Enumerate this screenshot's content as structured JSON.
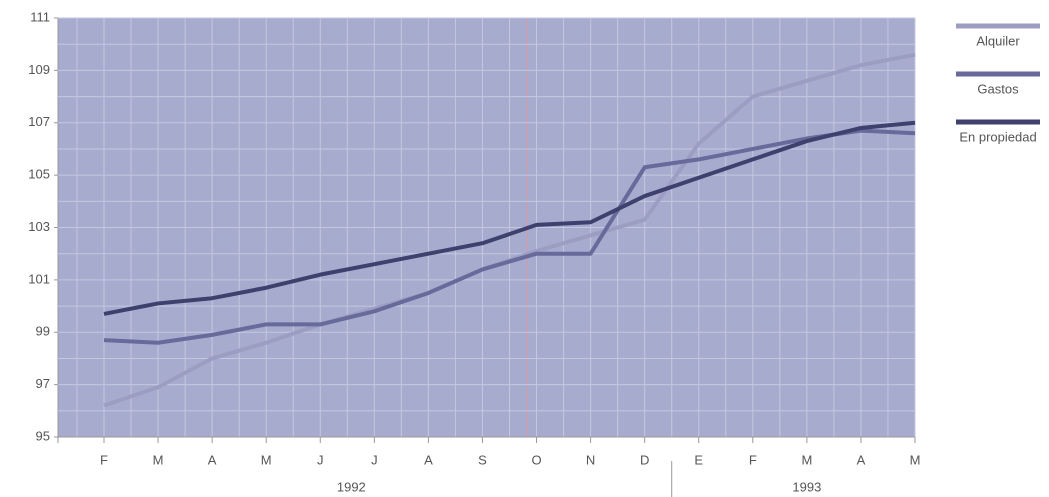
{
  "chart_data": {
    "type": "line",
    "categories": [
      "F",
      "M",
      "A",
      "M",
      "J",
      "J",
      "A",
      "S",
      "O",
      "N",
      "D",
      "E",
      "F",
      "M",
      "A",
      "M"
    ],
    "groups": [
      "1992",
      "1993"
    ],
    "series": [
      {
        "name": "Alquiler",
        "color": "#9c9dc2",
        "values": [
          96.2,
          96.9,
          98.0,
          98.6,
          99.3,
          99.9,
          100.5,
          101.4,
          102.1,
          102.7,
          103.3,
          106.2,
          108.0,
          108.6,
          109.2,
          109.6
        ]
      },
      {
        "name": "Gastos",
        "color": "#676a9a",
        "values": [
          98.7,
          98.6,
          98.9,
          99.3,
          99.3,
          99.8,
          100.5,
          101.4,
          102.0,
          102.0,
          105.3,
          105.6,
          106.0,
          106.4,
          106.7,
          106.6
        ]
      },
      {
        "name": "En propiedad",
        "color": "#3e406e",
        "values": [
          99.7,
          100.1,
          100.3,
          100.7,
          101.2,
          101.6,
          102.0,
          102.4,
          103.1,
          103.2,
          104.2,
          104.9,
          105.6,
          106.3,
          106.8,
          107.0
        ]
      }
    ],
    "ylim": [
      95,
      111
    ],
    "yticks": [
      95,
      97,
      99,
      101,
      103,
      105,
      107,
      109,
      111
    ],
    "grid": true
  }
}
